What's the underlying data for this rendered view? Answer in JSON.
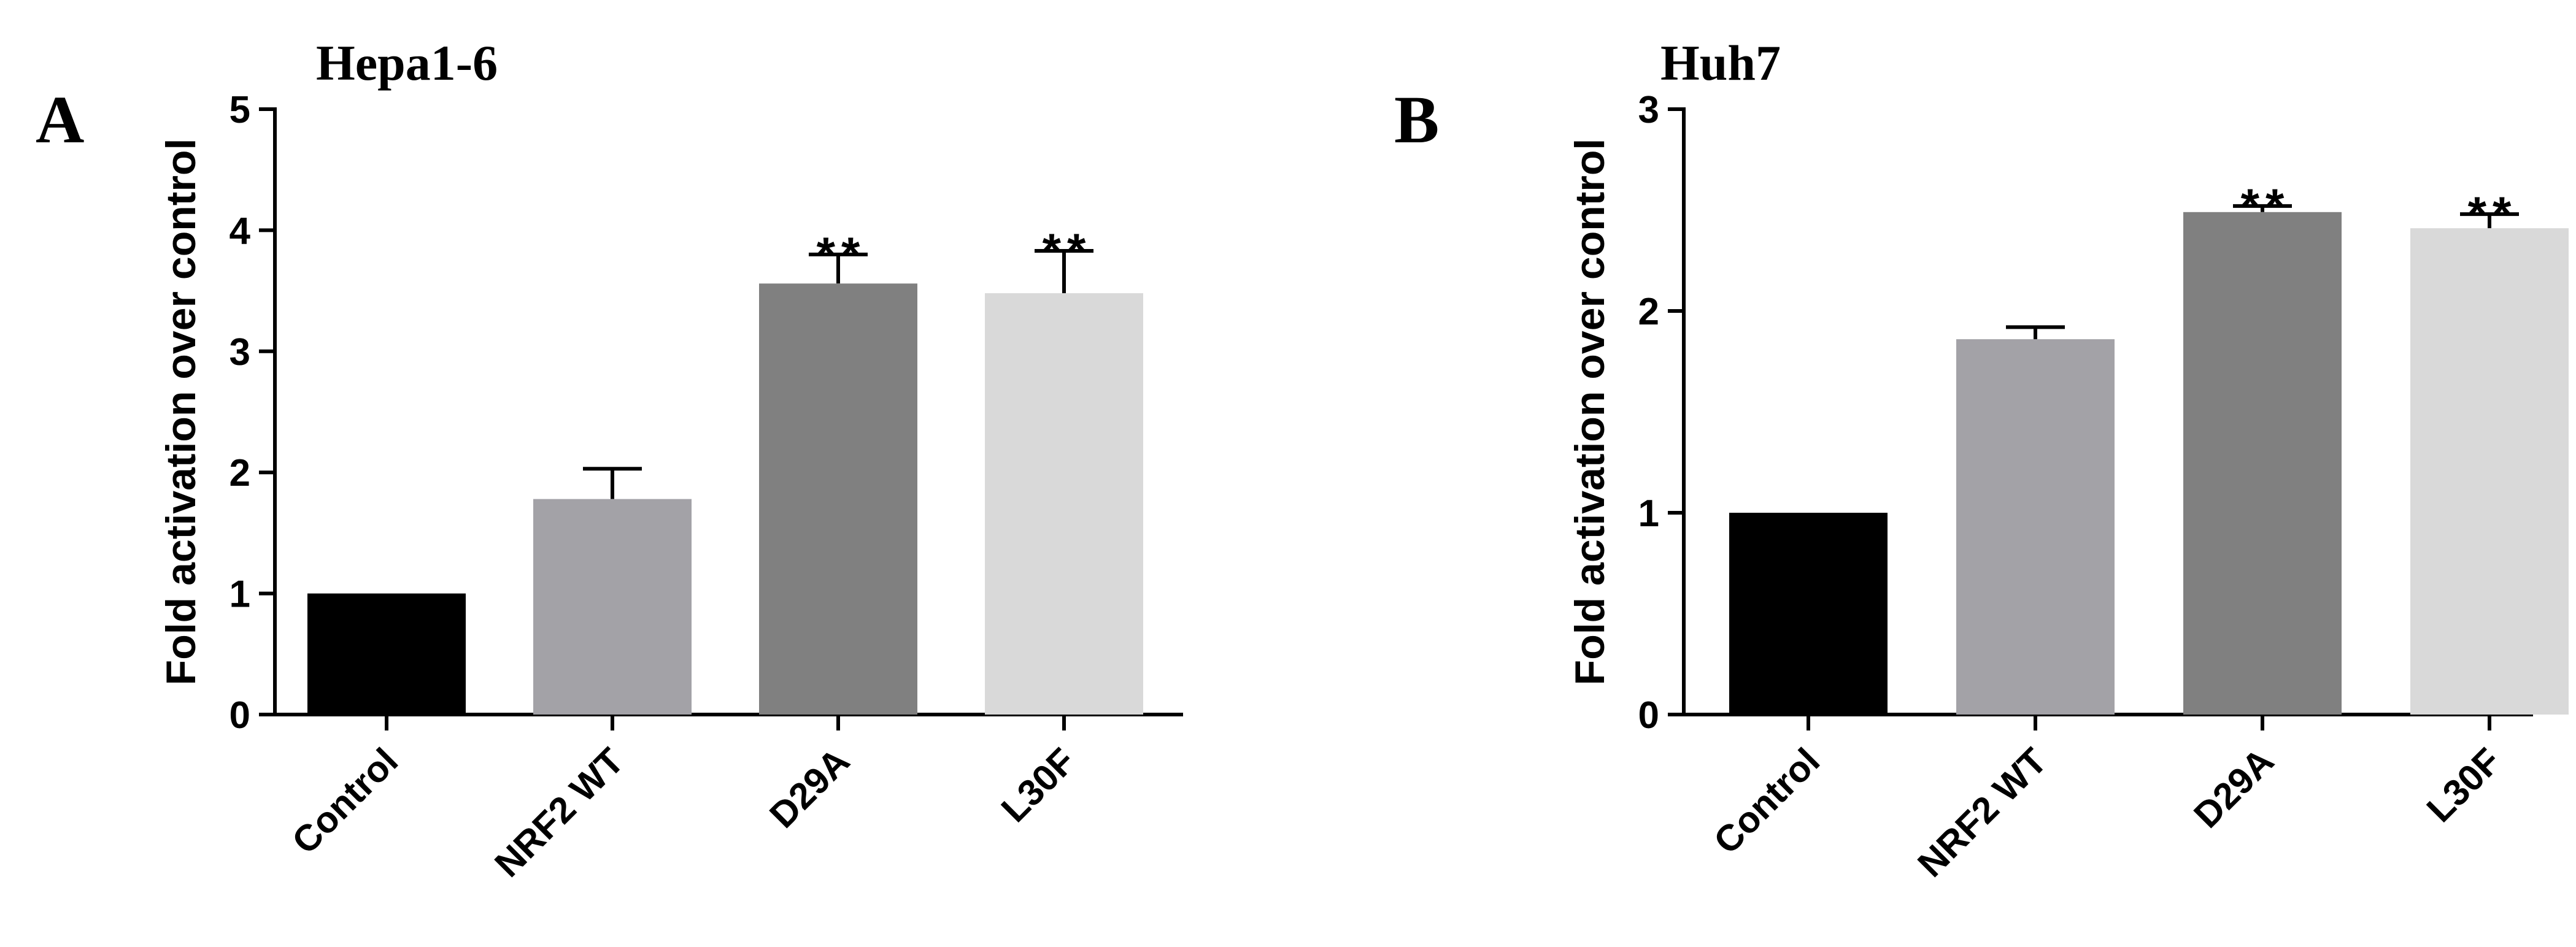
{
  "chart_data": [
    {
      "type": "bar",
      "panel": "A",
      "title": "Hepa1-6",
      "ylabel": "Fold activation over control",
      "ylim": [
        0,
        5
      ],
      "yticks": [
        0,
        1,
        2,
        3,
        4,
        5
      ],
      "categories": [
        "Control",
        "NRF2 WT",
        "D29A",
        "L30F"
      ],
      "values": [
        1.0,
        1.78,
        3.56,
        3.48
      ],
      "errors": [
        0,
        0.25,
        0.24,
        0.35
      ],
      "significance": [
        "",
        "",
        "**",
        "**"
      ],
      "colors": [
        "#000000",
        "#a3a2a7",
        "#808080",
        "#d9d9d9"
      ]
    },
    {
      "type": "bar",
      "panel": "B",
      "title": "Huh7",
      "ylabel": "Fold activation over control",
      "ylim": [
        0,
        3
      ],
      "yticks": [
        0,
        1,
        2,
        3
      ],
      "categories": [
        "Control",
        "NRF2 WT",
        "D29A",
        "L30F"
      ],
      "values": [
        1.0,
        1.86,
        2.49,
        2.41
      ],
      "errors": [
        0,
        0.06,
        0.03,
        0.07
      ],
      "significance": [
        "",
        "",
        "**",
        "**"
      ],
      "colors": [
        "#000000",
        "#a3a2a7",
        "#808080",
        "#d9d9d9"
      ]
    }
  ]
}
